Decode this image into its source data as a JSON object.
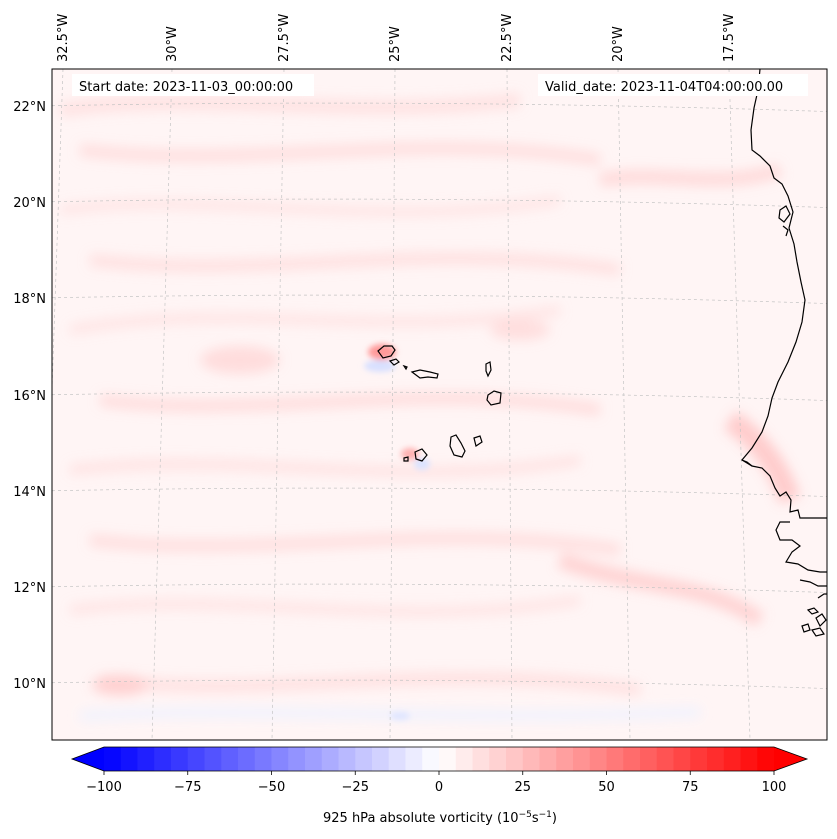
{
  "map": {
    "start_date": "Start date: 2023-11-03_00:00:00",
    "valid_date": "Valid_date: 2023-11-04T04:00:00.00",
    "lon_labels": [
      "32.5°W",
      "30°W",
      "27.5°W",
      "25°W",
      "22.5°W",
      "20°W",
      "17.5°W"
    ],
    "lat_labels": [
      "22°N",
      "20°N",
      "18°N",
      "16°N",
      "14°N",
      "12°N",
      "10°N"
    ],
    "region": "Cape Verde / West African coast",
    "colors": {
      "coastline": "#000000",
      "gridline": "#bbbbbb",
      "background_field": "#fff4f4"
    }
  },
  "colorbar": {
    "ticks": [
      "−100",
      "−75",
      "−50",
      "−25",
      "0",
      "25",
      "50",
      "75",
      "100"
    ],
    "label_main": "925 hPa absolute vorticity (10",
    "label_exp1": "−5",
    "label_mid": "s",
    "label_exp2": "−1",
    "label_end": ")",
    "range": [
      -100,
      100
    ],
    "colors": {
      "min": "#0000ff",
      "mid": "#ffffff",
      "max": "#ff0000"
    }
  }
}
